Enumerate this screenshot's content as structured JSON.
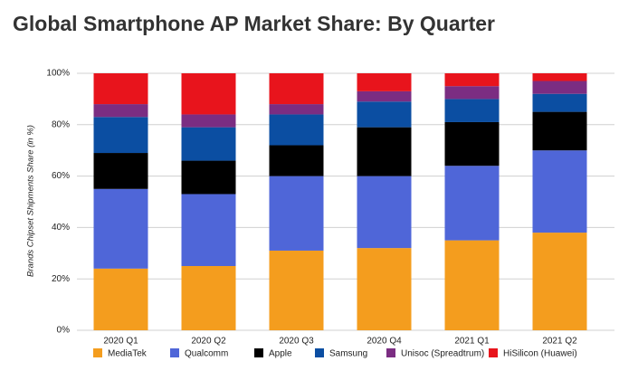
{
  "chart_data": {
    "type": "stacked_bar",
    "title": "Global Smartphone AP Market Share: By Quarter",
    "y_label": "Brands Chipset Shipments Share (in %)",
    "categories": [
      "2020 Q1",
      "2020 Q2",
      "2020 Q3",
      "2020 Q4",
      "2021 Q1",
      "2021 Q2"
    ],
    "series": [
      {
        "name": "MediaTek",
        "color": "#f49d1e",
        "values": [
          24,
          25,
          31,
          32,
          35,
          38
        ]
      },
      {
        "name": "Qualcomm",
        "color": "#4f66d8",
        "values": [
          31,
          28,
          29,
          28,
          29,
          32
        ]
      },
      {
        "name": "Apple",
        "color": "#000000",
        "values": [
          14,
          13,
          12,
          19,
          17,
          15
        ]
      },
      {
        "name": "Samsung",
        "color": "#0b4ea2",
        "values": [
          14,
          13,
          12,
          10,
          9,
          7
        ]
      },
      {
        "name": "Unisoc (Spreadtrum)",
        "color": "#7b2d82",
        "values": [
          5,
          5,
          4,
          4,
          5,
          5
        ]
      },
      {
        "name": "HiSilicon (Huawei)",
        "color": "#e8141c",
        "values": [
          12,
          16,
          12,
          7,
          5,
          3
        ]
      }
    ],
    "ylim": [
      0,
      100
    ],
    "yticks": [
      {
        "value": 0,
        "label": "0%"
      },
      {
        "value": 20,
        "label": "20%"
      },
      {
        "value": 40,
        "label": "40%"
      },
      {
        "value": 60,
        "label": "60%"
      },
      {
        "value": 80,
        "label": "80%"
      },
      {
        "value": 100,
        "label": "100%"
      }
    ],
    "grid": true
  }
}
